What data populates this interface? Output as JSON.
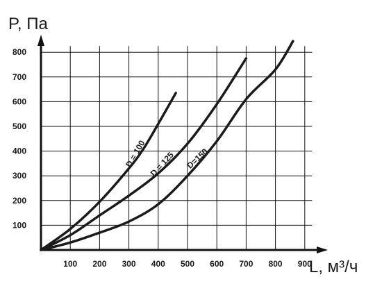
{
  "chart_data": {
    "type": "line",
    "ylabel": "P, Па",
    "xlabel": "L, м³/ч",
    "xlim": [
      0,
      900
    ],
    "ylim": [
      0,
      800
    ],
    "x_ticks": [
      "100",
      "200",
      "300",
      "400",
      "500",
      "600",
      "700",
      "800",
      "900"
    ],
    "y_ticks": [
      "100",
      "200",
      "300",
      "400",
      "500",
      "600",
      "700",
      "800"
    ],
    "grid": true,
    "series": [
      {
        "name": "D = 100",
        "x": [
          0,
          100,
          200,
          300,
          350,
          400,
          460
        ],
        "y": [
          0,
          85,
          195,
          330,
          410,
          510,
          635
        ]
      },
      {
        "name": "D = 125",
        "x": [
          0,
          100,
          200,
          300,
          400,
          500,
          600,
          700
        ],
        "y": [
          0,
          60,
          140,
          220,
          310,
          430,
          590,
          775
        ]
      },
      {
        "name": "D=150",
        "x": [
          0,
          100,
          200,
          300,
          400,
          500,
          600,
          700,
          800,
          860
        ],
        "y": [
          0,
          30,
          70,
          115,
          185,
          300,
          440,
          610,
          730,
          845
        ]
      }
    ]
  }
}
